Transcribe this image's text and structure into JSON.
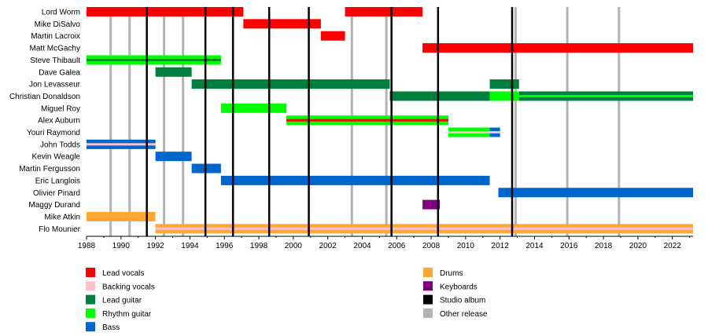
{
  "chart_data": {
    "type": "timeline",
    "title": "",
    "x_axis": {
      "range": [
        1988,
        2023.2
      ],
      "tick_labels": [
        "1988",
        "1990",
        "1992",
        "1994",
        "1996",
        "1998",
        "2000",
        "2002",
        "2004",
        "2006",
        "2008",
        "2010",
        "2012",
        "2014",
        "2016",
        "2018",
        "2020",
        "2022"
      ]
    },
    "members": [
      "Lord Worm",
      "Mike DiSalvo",
      "Martin Lacroix",
      "Matt McGachy",
      "Steve Thibault",
      "Dave Galea",
      "Jon Levasseur",
      "Christian Donaldson",
      "Miguel Roy",
      "Alex Auburn",
      "Youri Raymond",
      "John Todds",
      "Kevin Weagle",
      "Martin Fergusson",
      "Eric Langlois",
      "Olivier Pinard",
      "Maggy Durand",
      "Mike Atkin",
      "Flo Mounier"
    ],
    "roles": [
      {
        "key": "lead_vocals",
        "name": "Lead vocals",
        "color": "#ff0000"
      },
      {
        "key": "backing_vocals",
        "name": "Backing vocals",
        "color": "#ffc0cb"
      },
      {
        "key": "lead_guitar",
        "name": "Lead guitar",
        "color": "#007f3f"
      },
      {
        "key": "rhythm_guitar",
        "name": "Rhythm guitar",
        "color": "#00ff00"
      },
      {
        "key": "bass",
        "name": "Bass",
        "color": "#0066cc"
      },
      {
        "key": "drums",
        "name": "Drums",
        "color": "#ffa733"
      },
      {
        "key": "keyboards",
        "name": "Keyboards",
        "color": "#7f007f"
      },
      {
        "key": "studio_album",
        "name": "Studio album",
        "color": "#000000"
      },
      {
        "key": "other_release",
        "name": "Other release",
        "color": "#b3b3b3"
      }
    ],
    "studio_albums": [
      1991.5,
      1994.9,
      1996.5,
      1998.6,
      2000.9,
      2005.7,
      2008.4,
      2012.7
    ],
    "other_releases": [
      1989.4,
      1990.5,
      1992.5,
      1993.6,
      2003.4,
      2005.4,
      2012.9,
      2015.9,
      2018.9
    ],
    "bars": [
      {
        "member": "Lord Worm",
        "role": "lead_vocals",
        "start": 1988.0,
        "end": 1997.1
      },
      {
        "member": "Lord Worm",
        "role": "lead_vocals",
        "start": 2003.0,
        "end": 2007.5
      },
      {
        "member": "Mike DiSalvo",
        "role": "lead_vocals",
        "start": 1997.1,
        "end": 2001.6
      },
      {
        "member": "Martin Lacroix",
        "role": "lead_vocals",
        "start": 2001.6,
        "end": 2003.0
      },
      {
        "member": "Matt McGachy",
        "role": "lead_vocals",
        "start": 2007.5,
        "end": 2023.2
      },
      {
        "member": "Steve Thibault",
        "role": "rhythm_guitar",
        "start": 1988.0,
        "end": 1995.8,
        "accent": "lead_guitar"
      },
      {
        "member": "Dave Galea",
        "role": "lead_guitar",
        "start": 1992.0,
        "end": 1994.1
      },
      {
        "member": "Jon Levasseur",
        "role": "lead_guitar",
        "start": 1994.1,
        "end": 2005.6
      },
      {
        "member": "Jon Levasseur",
        "role": "lead_guitar",
        "start": 2011.4,
        "end": 2013.1
      },
      {
        "member": "Christian Donaldson",
        "role": "lead_guitar",
        "start": 2005.6,
        "end": 2011.4
      },
      {
        "member": "Christian Donaldson",
        "role": "rhythm_guitar",
        "start": 2011.4,
        "end": 2013.1
      },
      {
        "member": "Christian Donaldson",
        "role": "lead_guitar",
        "start": 2013.1,
        "end": 2023.2,
        "accent": "rhythm_guitar"
      },
      {
        "member": "Miguel Roy",
        "role": "rhythm_guitar",
        "start": 1995.8,
        "end": 1999.6
      },
      {
        "member": "Alex Auburn",
        "role": "rhythm_guitar",
        "start": 1999.6,
        "end": 2009.0,
        "accent": "lead_vocals"
      },
      {
        "member": "Youri Raymond",
        "role": "rhythm_guitar",
        "start": 2009.0,
        "end": 2011.4,
        "accent": "backing_vocals"
      },
      {
        "member": "Youri Raymond",
        "role": "bass",
        "start": 2011.4,
        "end": 2012.0,
        "accent": "backing_vocals"
      },
      {
        "member": "John Todds",
        "role": "bass",
        "start": 1988.0,
        "end": 1992.0,
        "accent": "backing_vocals"
      },
      {
        "member": "Kevin Weagle",
        "role": "bass",
        "start": 1992.0,
        "end": 1994.1
      },
      {
        "member": "Martin Fergusson",
        "role": "bass",
        "start": 1994.1,
        "end": 1995.8
      },
      {
        "member": "Eric Langlois",
        "role": "bass",
        "start": 1995.8,
        "end": 2011.4
      },
      {
        "member": "Olivier Pinard",
        "role": "bass",
        "start": 2011.9,
        "end": 2023.2
      },
      {
        "member": "Maggy Durand",
        "role": "keyboards",
        "start": 2007.5,
        "end": 2008.5
      },
      {
        "member": "Mike Atkin",
        "role": "drums",
        "start": 1988.0,
        "end": 1992.0
      },
      {
        "member": "Flo Mounier",
        "role": "drums",
        "start": 1992.0,
        "end": 2023.2,
        "accent": "backing_vocals"
      }
    ],
    "grid": false,
    "legend_position": "bottom"
  }
}
